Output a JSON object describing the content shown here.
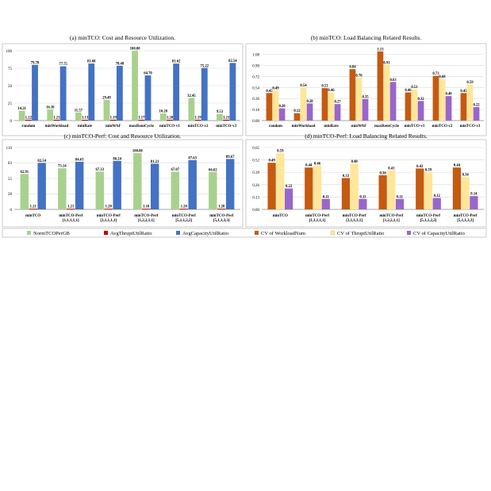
{
  "colors": {
    "green": "#a9d18e",
    "red": "#c00000",
    "blue": "#4472c4",
    "orange": "#c55a11",
    "yellow": "#ffe699",
    "purple": "#9966cc",
    "grid": "#d9d9d9",
    "frame": "#bfbfbf"
  },
  "legend": [
    {
      "label": "NormTCOPerGB",
      "color": "#a9d18e"
    },
    {
      "label": "AvgThruptUtilRatio",
      "color": "#c00000"
    },
    {
      "label": "AvgCapacityUtilRatio",
      "color": "#4472c4"
    },
    {
      "label": "CV of WorkloadNum",
      "color": "#c55a11"
    },
    {
      "label": "CV of ThruptUtilRatio",
      "color": "#ffe699"
    },
    {
      "label": "CV of CapacityUtilRatio",
      "color": "#9966cc"
    }
  ],
  "chart_data": [
    {
      "type": "bar",
      "title": "(a) minTCO: Cost and Resource Utilization.",
      "categories": [
        "random",
        "minWorkload",
        "minRate",
        "minWAF",
        "maxRemCycle",
        "minTCO-v1",
        "minTCO-v2",
        "minTCO-v3"
      ],
      "ylim": [
        0,
        100
      ],
      "yticks": [
        "0",
        "25",
        "50",
        "75",
        "100"
      ],
      "series": [
        {
          "name": "NormTCOPerGB",
          "color": "#a9d18e",
          "values": [
            14.21,
            16.1,
            11.57,
            29.49,
            100.0,
            10.2,
            32.45,
            9.53
          ],
          "labels": [
            "14.21",
            "16.10",
            "11.57",
            "29.49",
            "100.00",
            "10.20",
            "32.45",
            "9.53"
          ]
        },
        {
          "name": "AvgThruptUtilRatio",
          "color": "#c00000",
          "values": [
            1.22,
            1.21,
            1.13,
            1.19,
            1.17,
            1.2,
            1.19,
            1.21
          ],
          "labels": [
            "1.22",
            "1.21",
            "1.13",
            "1.19",
            "1.17",
            "1.20",
            "1.19",
            "1.21"
          ]
        },
        {
          "name": "AvgCapacityUtilRatio",
          "color": "#4472c4",
          "values": [
            79.7,
            77.75,
            81.68,
            78.48,
            64.7,
            81.62,
            75.22,
            82.54
          ],
          "labels": [
            "79.70",
            "77.75",
            "81.68",
            "78.48",
            "64.70",
            "81.62",
            "75.22",
            "82.54"
          ]
        }
      ]
    },
    {
      "type": "bar",
      "title": "(b) minTCO: Load Balancing Related Results.",
      "categories": [
        "random",
        "minWorkload",
        "minRate",
        "minWAF",
        "maxRemCycle",
        "minTCO-v1",
        "minTCO-v2",
        "minTCO-v3"
      ],
      "ylim": [
        0,
        1.14
      ],
      "yticks": [
        "0.00",
        "0.18",
        "0.36",
        "0.54",
        "0.72",
        "0.90",
        "1.08"
      ],
      "series": [
        {
          "name": "CV of WorkloadNum",
          "color": "#c55a11",
          "values": [
            0.45,
            0.12,
            0.53,
            0.84,
            1.13,
            0.46,
            0.73,
            0.45
          ],
          "labels": [
            "0.45",
            "0.12",
            "0.53",
            "0.84",
            "1.13",
            "0.46",
            "0.73",
            "0.45"
          ]
        },
        {
          "name": "CV of ThruptUtilRatio",
          "color": "#ffe699",
          "values": [
            0.49,
            0.54,
            0.46,
            0.7,
            0.91,
            0.51,
            0.68,
            0.59
          ],
          "labels": [
            "0.49",
            "0.54",
            "0.46",
            "0.70",
            "0.91",
            "0.51",
            "0.68",
            "0.59"
          ]
        },
        {
          "name": "CV of CapacityUtilRatio",
          "color": "#9966cc",
          "values": [
            0.2,
            0.28,
            0.27,
            0.35,
            0.63,
            0.32,
            0.4,
            0.22
          ],
          "labels": [
            "0.20",
            "0.28",
            "0.27",
            "0.35",
            "0.63",
            "0.32",
            "0.40",
            "0.22"
          ]
        }
      ]
    },
    {
      "type": "bar",
      "title": "(c) minTCO-Perf: Cost and Resource Utilization.",
      "categories": [
        "minTCO",
        "minTCO-Perf\n[1,1,1,1,1]",
        "minTCO-Perf\n[3,1,1,1,1]",
        "minTCO-Perf\n[1,2,2,1,1]",
        "minTCO-Perf\n[5,1,1,2,2]",
        "minTCO-Perf\n[5,1,1,3,3]"
      ],
      "ylim": [
        0,
        110
      ],
      "yticks": [
        "0",
        "28",
        "55",
        "83",
        "110"
      ],
      "series": [
        {
          "name": "NormTCOPerGB",
          "color": "#a9d18e",
          "values": [
            62.91,
            73.14,
            67.33,
            100.0,
            67.07,
            66.62
          ],
          "labels": [
            "62.91",
            "73.14",
            "67.33",
            "100.00",
            "67.07",
            "66.62"
          ]
        },
        {
          "name": "AvgThruptUtilRatio",
          "color": "#c00000",
          "values": [
            1.21,
            1.21,
            1.2,
            1.18,
            1.2,
            1.2
          ],
          "labels": [
            "1.21",
            "1.21",
            "1.20",
            "1.18",
            "1.20",
            "1.20"
          ]
        },
        {
          "name": "AvgCapacityUtilRatio",
          "color": "#4472c4",
          "values": [
            82.54,
            84.63,
            86.24,
            81.21,
            87.63,
            89.67
          ],
          "labels": [
            "82.54",
            "84.63",
            "86.24",
            "81.21",
            "87.63",
            "89.67"
          ]
        }
      ]
    },
    {
      "type": "bar",
      "title": "(d) minTCO-Perf: Load Balancing Related Results.",
      "categories": [
        "minTCO",
        "minTCO-Perf\n[1,1,1,1,1]",
        "minTCO-Perf\n[3,1,1,1,1]",
        "minTCO-Perf\n[1,2,2,1,1]",
        "minTCO-Perf\n[5,1,1,2,2]",
        "minTCO-Perf\n[5,1,1,3,3]"
      ],
      "ylim": [
        0,
        0.65
      ],
      "yticks": [
        "0.00",
        "0.13",
        "0.26",
        "0.39",
        "0.52",
        "0.65"
      ],
      "series": [
        {
          "name": "CV of WorkloadNum",
          "color": "#c55a11",
          "values": [
            0.49,
            0.44,
            0.33,
            0.36,
            0.43,
            0.44
          ],
          "labels": [
            "0.49",
            "0.44",
            "0.33",
            "0.36",
            "0.43",
            "0.44"
          ]
        },
        {
          "name": "CV of ThruptUtilRatio",
          "color": "#ffe699",
          "values": [
            0.59,
            0.46,
            0.48,
            0.41,
            0.39,
            0.34
          ],
          "labels": [
            "0.59",
            "0.46",
            "0.48",
            "0.41",
            "0.39",
            "0.34"
          ]
        },
        {
          "name": "CV of CapacityUtilRatio",
          "color": "#9966cc",
          "values": [
            0.22,
            0.11,
            0.11,
            0.11,
            0.12,
            0.14
          ],
          "labels": [
            "0.22",
            "0.11",
            "0.11",
            "0.11",
            "0.12",
            "0.14"
          ]
        }
      ]
    }
  ]
}
